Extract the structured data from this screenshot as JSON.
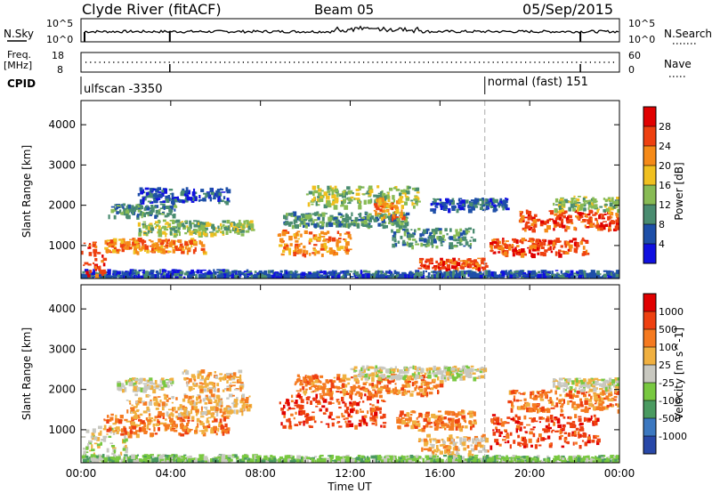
{
  "header": {
    "station": "Clyde River (fitACF)",
    "beam": "Beam 05",
    "date": "05/Sep/2015"
  },
  "sky_panel": {
    "left_label": "N.Sky",
    "left_ticks": [
      "10^5",
      "10^0"
    ],
    "right_label": "N.Search",
    "right_ticks": [
      "10^5",
      "10^0"
    ]
  },
  "freq_panel": {
    "left_label": "Freq.",
    "left_unit": "[MHz]",
    "left_ticks": [
      "18",
      "8"
    ],
    "right_label": "Nave",
    "right_ticks": [
      "60",
      "0"
    ]
  },
  "cpid": {
    "label": "CPID",
    "programs": [
      {
        "name": "ulfscan -3350",
        "start_hour": 0
      },
      {
        "name": "normal (fast) 151",
        "start_hour": 18.0
      }
    ]
  },
  "axes": {
    "ylabel": "Slant Range [km]",
    "xlabel": "Time UT",
    "y_ticks": [
      1000,
      2000,
      3000,
      4000
    ],
    "ylim": [
      180,
      4600
    ],
    "x_ticks": [
      "00:00",
      "04:00",
      "08:00",
      "12:00",
      "16:00",
      "20:00",
      "00:00"
    ],
    "xlim_hours": [
      0,
      24
    ]
  },
  "chart_data": [
    {
      "type": "heatmap",
      "title": "",
      "quantity": "Power",
      "colorbar_label": "Power [dB]",
      "colorbar_ticks": [
        "28",
        "24",
        "20",
        "16",
        "12",
        "8",
        "4"
      ],
      "colors": [
        "#1010e0",
        "#1e4fa8",
        "#4a8c70",
        "#88bb55",
        "#f0c020",
        "#f58a18",
        "#ee4010",
        "#e00000"
      ],
      "ylim": [
        180,
        4600
      ],
      "x_unit": "hours UT",
      "blobs": [
        {
          "t0": 0.0,
          "t1": 8.0,
          "r0": 190,
          "r1": 420,
          "level": 1
        },
        {
          "t0": 0.0,
          "t1": 1.0,
          "r0": 190,
          "r1": 1100,
          "level": 6
        },
        {
          "t0": 1.0,
          "t1": 5.5,
          "r0": 850,
          "r1": 1200,
          "level": 5
        },
        {
          "t0": 2.5,
          "t1": 7.6,
          "r0": 1300,
          "r1": 1650,
          "level": 3
        },
        {
          "t0": 1.2,
          "t1": 4.2,
          "r0": 1750,
          "r1": 2050,
          "level": 2
        },
        {
          "t0": 2.5,
          "t1": 6.5,
          "r0": 2100,
          "r1": 2450,
          "level": 1
        },
        {
          "t0": 8.7,
          "t1": 12.0,
          "r0": 800,
          "r1": 1400,
          "level": 5
        },
        {
          "t0": 9.0,
          "t1": 14.5,
          "r0": 1500,
          "r1": 1850,
          "level": 2
        },
        {
          "t0": 10.0,
          "t1": 15.0,
          "r0": 2000,
          "r1": 2500,
          "level": 3
        },
        {
          "t0": 13.0,
          "t1": 14.3,
          "r0": 1700,
          "r1": 2200,
          "level": 5
        },
        {
          "t0": 13.8,
          "t1": 17.5,
          "r0": 1000,
          "r1": 1450,
          "level": 2
        },
        {
          "t0": 15.0,
          "t1": 18.0,
          "r0": 450,
          "r1": 700,
          "level": 6
        },
        {
          "t0": 15.5,
          "t1": 19.0,
          "r0": 1900,
          "r1": 2200,
          "level": 1
        },
        {
          "t0": 18.2,
          "t1": 22.5,
          "r0": 800,
          "r1": 1200,
          "level": 6
        },
        {
          "t0": 19.5,
          "t1": 24.0,
          "r0": 1400,
          "r1": 1900,
          "level": 6
        },
        {
          "t0": 21.0,
          "t1": 24.0,
          "r0": 1900,
          "r1": 2250,
          "level": 3
        },
        {
          "t0": 8.0,
          "t1": 24.0,
          "r0": 190,
          "r1": 400,
          "level": 1
        }
      ]
    },
    {
      "type": "heatmap",
      "title": "",
      "quantity": "Velocity",
      "colorbar_label": "Velocity [m s^-1]",
      "colorbar_ticks": [
        "1000",
        "500",
        "100",
        "25",
        "-25",
        "-100",
        "-500",
        "-1000"
      ],
      "colors": [
        "#2848a8",
        "#3c78c0",
        "#4a9a60",
        "#78c840",
        "#c8c8c0",
        "#f0b040",
        "#f57a20",
        "#ee4010",
        "#e00000"
      ],
      "ylim": [
        180,
        4600
      ],
      "x_unit": "hours UT",
      "blobs": [
        {
          "t0": 0.0,
          "t1": 2.0,
          "r0": 190,
          "r1": 1100,
          "level": 4
        },
        {
          "t0": 0.0,
          "t1": 8.0,
          "r0": 190,
          "r1": 400,
          "level": 3
        },
        {
          "t0": 1.0,
          "t1": 6.5,
          "r0": 900,
          "r1": 1400,
          "level": 6
        },
        {
          "t0": 2.0,
          "t1": 7.5,
          "r0": 1400,
          "r1": 1900,
          "level": 5
        },
        {
          "t0": 4.5,
          "t1": 7.2,
          "r0": 2000,
          "r1": 2500,
          "level": 5
        },
        {
          "t0": 1.5,
          "t1": 4.0,
          "r0": 2000,
          "r1": 2300,
          "level": 4
        },
        {
          "t0": 8.8,
          "t1": 13.5,
          "r0": 1100,
          "r1": 1900,
          "level": 7
        },
        {
          "t0": 9.5,
          "t1": 16.0,
          "r0": 1900,
          "r1": 2400,
          "level": 6
        },
        {
          "t0": 14.0,
          "t1": 17.5,
          "r0": 1000,
          "r1": 1500,
          "level": 6
        },
        {
          "t0": 12.0,
          "t1": 18.0,
          "r0": 2300,
          "r1": 2600,
          "level": 4
        },
        {
          "t0": 15.0,
          "t1": 18.0,
          "r0": 400,
          "r1": 900,
          "level": 5
        },
        {
          "t0": 18.2,
          "t1": 23.0,
          "r0": 600,
          "r1": 1400,
          "level": 7
        },
        {
          "t0": 19.0,
          "t1": 24.0,
          "r0": 1500,
          "r1": 2000,
          "level": 6
        },
        {
          "t0": 21.0,
          "t1": 24.0,
          "r0": 2000,
          "r1": 2300,
          "level": 4
        },
        {
          "t0": 8.0,
          "t1": 24.0,
          "r0": 190,
          "r1": 380,
          "level": 3
        }
      ]
    }
  ]
}
